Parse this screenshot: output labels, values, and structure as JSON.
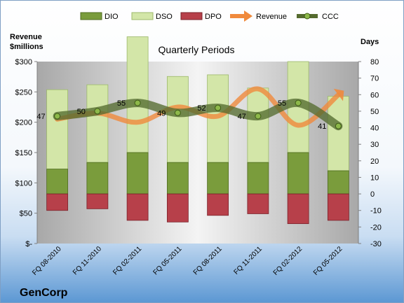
{
  "chart_data": {
    "type": "bar",
    "title": "Quarterly Periods",
    "company": "GenCorp",
    "left_axis_title": [
      "Revenue",
      "$millions"
    ],
    "right_axis_title": "Days",
    "categories": [
      "FQ 08-2010",
      "FQ 11-2010",
      "FQ 02-2011",
      "FQ 05-2011",
      "FQ 08-2011",
      "FQ 11-2011",
      "FQ 02-2012",
      "FQ 05-2012"
    ],
    "left_axis": {
      "ticks": [
        "$-",
        "$50",
        "$100",
        "$150",
        "$200",
        "$250",
        "$300"
      ],
      "ylim": [
        0,
        300
      ]
    },
    "right_axis": {
      "ticks": [
        "-30",
        "-20",
        "-10",
        "0",
        "10",
        "20",
        "30",
        "40",
        "50",
        "60",
        "70",
        "80"
      ],
      "ylim": [
        -30,
        80
      ]
    },
    "legend": [
      "DIO",
      "DSO",
      "DPO",
      "Revenue",
      "CCC"
    ],
    "legend_position": "top",
    "series": [
      {
        "name": "DIO",
        "axis": "right",
        "values": [
          15,
          19,
          25,
          19,
          19,
          19,
          25,
          14
        ]
      },
      {
        "name": "DSO",
        "axis": "right",
        "values": [
          48,
          47,
          70,
          52,
          53,
          45,
          55,
          45
        ]
      },
      {
        "name": "DPO",
        "axis": "right",
        "values": [
          -10,
          -9,
          -16,
          -17,
          -13,
          -12,
          -18,
          -16
        ]
      },
      {
        "name": "Revenue",
        "axis": "left",
        "values": [
          205,
          215,
          200,
          225,
          210,
          255,
          195,
          245
        ]
      },
      {
        "name": "CCC",
        "axis": "right",
        "values": [
          47,
          50,
          55,
          49,
          52,
          47,
          55,
          41
        ]
      }
    ],
    "ccc_labels": [
      "47",
      "50",
      "55",
      "49",
      "52",
      "47",
      "55",
      "41"
    ],
    "colors": {
      "dio": "#7a9c3c",
      "dio_dark": "#4f6b1f",
      "dso": "#d3e6a8",
      "dso_dark": "#9cb86a",
      "dpo": "#b7404a",
      "dpo_dark": "#7a222a",
      "revenue": "#f08a3c",
      "ccc": "#556b2f",
      "ccc_marker": "#8db84a",
      "bg_top": "#ffffff",
      "bg_bottom": "#5b9bd5"
    }
  }
}
